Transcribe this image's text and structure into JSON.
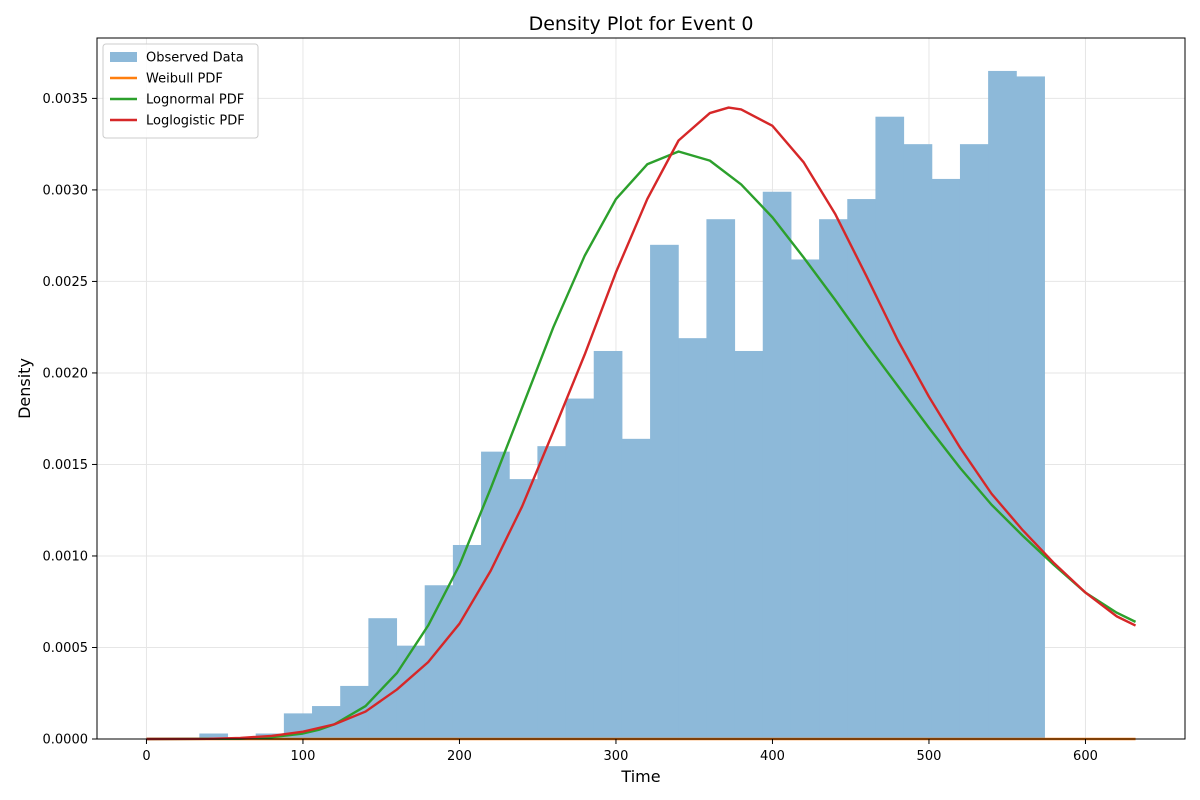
{
  "chart_data": {
    "type": "bar",
    "title": "Density Plot for Event 0",
    "xlabel": "Time",
    "ylabel": "Density",
    "xlim": [
      -31.6,
      663.6
    ],
    "ylim": [
      0,
      0.00383
    ],
    "grid": true,
    "legend_position": "top-left",
    "x_ticks": [
      0,
      100,
      200,
      300,
      400,
      500,
      600
    ],
    "x_tick_labels": [
      "0",
      "100",
      "200",
      "300",
      "400",
      "500",
      "600"
    ],
    "y_ticks": [
      0,
      0.0005,
      0.001,
      0.0015,
      0.002,
      0.0025,
      0.003,
      0.0035
    ],
    "y_tick_labels": [
      "0.0000",
      "0.0005",
      "0.0010",
      "0.0015",
      "0.0020",
      "0.0025",
      "0.0030",
      "0.0035"
    ],
    "histogram": {
      "name": "Observed Data",
      "color": "#8db9d9",
      "bin_edges": [
        15.8,
        33.8,
        51.8,
        69.8,
        87.8,
        105.8,
        123.8,
        141.8,
        159.8,
        177.8,
        195.8,
        213.8,
        231.8,
        249.8,
        267.8,
        285.8,
        303.8,
        321.8,
        339.8,
        357.8,
        375.8,
        393.8,
        411.8,
        429.8,
        447.8,
        465.8,
        483.8,
        501.8,
        519.8,
        537.8,
        555.8,
        573.8
      ],
      "values": [
        0,
        3e-05,
        0,
        3e-05,
        0.00014,
        0.00018,
        0.00029,
        0.00066,
        0.00051,
        0.00084,
        0.00106,
        0.00157,
        0.00142,
        0.0016,
        0.00186,
        0.00212,
        0.00164,
        0.0027,
        0.00219,
        0.00284,
        0.00212,
        0.00299,
        0.00262,
        0.00284,
        0.00295,
        0.0034,
        0.00325,
        0.00306,
        0.00325,
        0.00365,
        0.00362
      ]
    },
    "series": [
      {
        "name": "Weibull PDF",
        "color": "#ff7f0e",
        "x": [
          0,
          632
        ],
        "values": [
          0,
          0
        ]
      },
      {
        "name": "Lognormal PDF",
        "color": "#2ca02c",
        "x": [
          0,
          60,
          80,
          100,
          110,
          120,
          140,
          160,
          180,
          200,
          220,
          240,
          260,
          280,
          300,
          320,
          340,
          360,
          380,
          400,
          420,
          440,
          460,
          480,
          500,
          520,
          540,
          560,
          580,
          600,
          620,
          632
        ],
        "values": [
          0,
          2e-06,
          1e-05,
          3e-05,
          5e-05,
          8e-05,
          0.00018,
          0.00036,
          0.00062,
          0.00095,
          0.00137,
          0.00181,
          0.00225,
          0.00264,
          0.00295,
          0.00314,
          0.00321,
          0.00316,
          0.00303,
          0.00285,
          0.00263,
          0.0024,
          0.00216,
          0.00193,
          0.0017,
          0.00148,
          0.00128,
          0.00111,
          0.00095,
          0.0008,
          0.00069,
          0.00064
        ]
      },
      {
        "name": "Loglogistic PDF",
        "color": "#d62728",
        "x": [
          0,
          40,
          60,
          80,
          100,
          120,
          140,
          160,
          180,
          200,
          220,
          240,
          260,
          280,
          300,
          320,
          340,
          360,
          372,
          380,
          400,
          420,
          440,
          460,
          480,
          500,
          520,
          540,
          560,
          580,
          600,
          620,
          632
        ],
        "values": [
          0,
          1e-06,
          6e-06,
          1.7e-05,
          4e-05,
          8e-05,
          0.00015,
          0.00027,
          0.00042,
          0.00063,
          0.00092,
          0.00127,
          0.00168,
          0.0021,
          0.00255,
          0.00295,
          0.00327,
          0.00342,
          0.00345,
          0.00344,
          0.00335,
          0.00315,
          0.00287,
          0.00253,
          0.00218,
          0.00187,
          0.00159,
          0.00134,
          0.00114,
          0.00096,
          0.0008,
          0.00067,
          0.00062
        ]
      }
    ]
  }
}
